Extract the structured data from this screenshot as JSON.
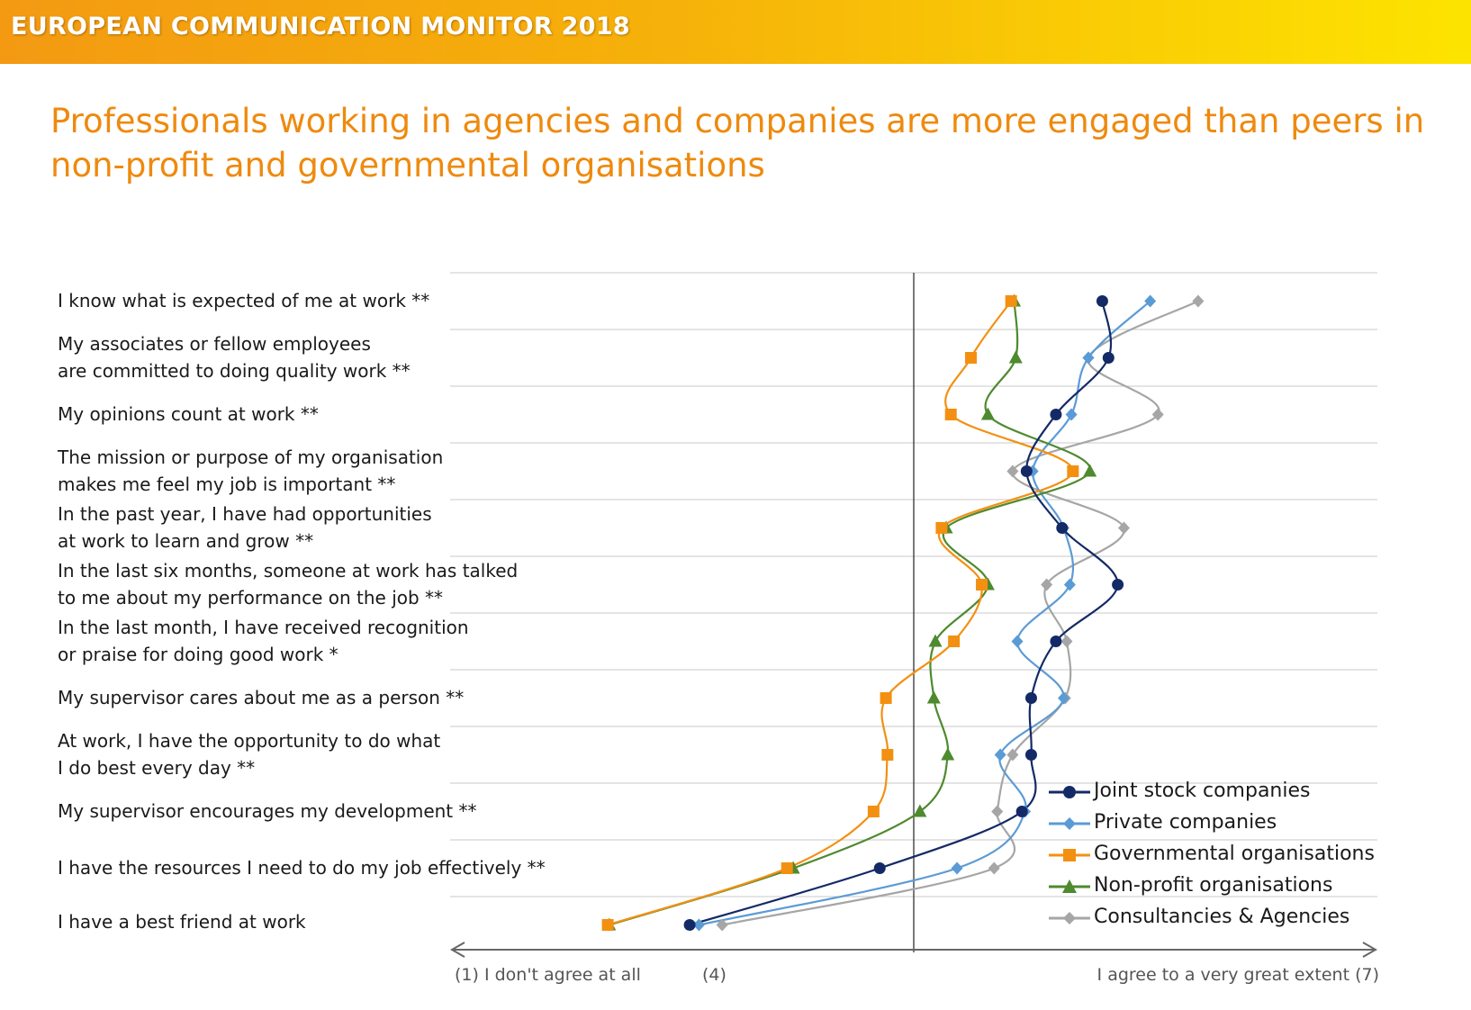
{
  "header": {
    "banner_title": "EUROPEAN COMMUNICATION MONITOR 2018"
  },
  "headline": "Professionals working in agencies and companies are more engaged than peers in non-profit and governmental organisations",
  "chart_data": {
    "type": "line",
    "orientation": "horizontal",
    "categories": [
      [
        "I know what is expected of me at work **"
      ],
      [
        "My associates or fellow employees",
        "are committed to doing quality work **"
      ],
      [
        "My opinions count at work **"
      ],
      [
        "The mission or purpose of my organisation",
        "makes me feel my job is important **"
      ],
      [
        "In the past year, I have had opportunities",
        "at work to learn and grow **"
      ],
      [
        "In the last six months, someone at work has talked",
        "to me about my performance on the job **"
      ],
      [
        "In the last month, I have received recognition",
        "or praise for doing good work *"
      ],
      [
        "My supervisor cares about me as a person **"
      ],
      [
        "At work, I have the opportunity to do what",
        "I do best every day **"
      ],
      [
        "My supervisor encourages my development **"
      ],
      [
        "I have the resources I need  to do my job effectively **"
      ],
      [
        "I have a best friend at work"
      ]
    ],
    "xlim": [
      1,
      7
    ],
    "axis_labels": {
      "left": "(1) I don't agree at all",
      "middle": "(4)",
      "right": "I agree to a very great extent (7)"
    },
    "legend": "bottom-right",
    "series": [
      {
        "name": "Joint stock companies",
        "color": "#142a66",
        "marker": "circle",
        "values": [
          5.22,
          5.26,
          4.92,
          4.73,
          4.96,
          5.32,
          4.92,
          4.76,
          4.76,
          4.7,
          3.78,
          2.55
        ]
      },
      {
        "name": "Private companies",
        "color": "#5b9bd5",
        "marker": "diamond",
        "values": [
          5.53,
          5.13,
          5.02,
          4.77,
          4.97,
          5.01,
          4.67,
          4.97,
          4.56,
          4.72,
          4.28,
          2.61
        ]
      },
      {
        "name": "Governmental organisations",
        "color": "#f39012",
        "marker": "square",
        "values": [
          4.63,
          4.37,
          4.24,
          5.03,
          4.18,
          4.44,
          4.26,
          3.82,
          3.83,
          3.74,
          3.18,
          2.02
        ]
      },
      {
        "name": "Non-profit organisations",
        "color": "#4e8a2e",
        "marker": "triangle",
        "values": [
          4.65,
          4.66,
          4.48,
          5.14,
          4.21,
          4.48,
          4.14,
          4.13,
          4.22,
          4.04,
          3.22,
          2.03
        ]
      },
      {
        "name": "Consultancies & Agencies",
        "color": "#a6a6a6",
        "marker": "diamond",
        "values": [
          5.84,
          5.13,
          5.58,
          4.64,
          5.36,
          4.86,
          4.99,
          4.98,
          4.64,
          4.54,
          4.52,
          2.76
        ]
      }
    ]
  }
}
